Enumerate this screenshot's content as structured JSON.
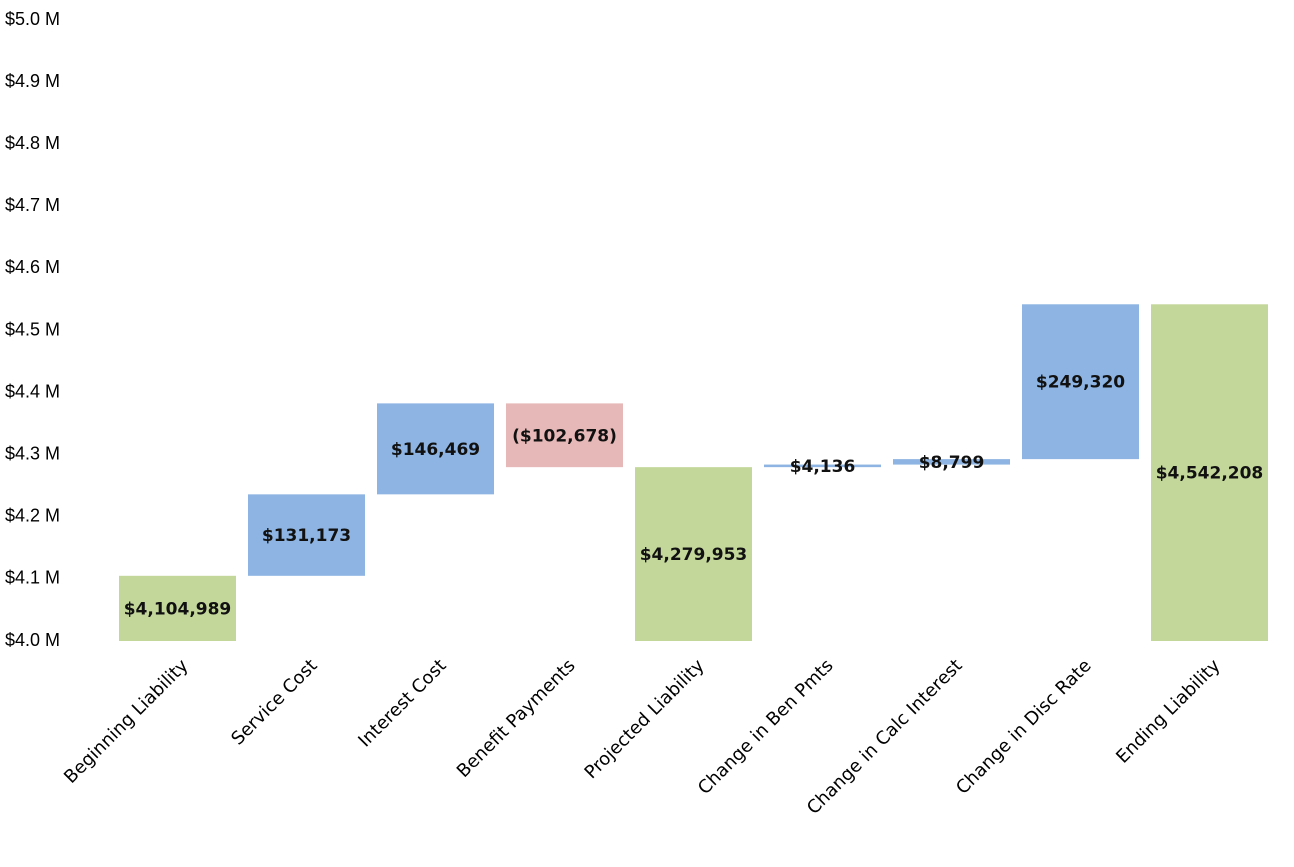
{
  "chart_data": {
    "type": "waterfall",
    "categories": [
      "Beginning Liability",
      "Service Cost",
      "Interest Cost",
      "Benefit Payments",
      "Projected Liability",
      "Change in Ben Pmts",
      "Change in Calc Interest",
      "Change in Disc Rate",
      "Ending Liability"
    ],
    "values": [
      4104989,
      131173,
      146469,
      -102678,
      4279953,
      4136,
      8799,
      249320,
      4542208
    ],
    "value_labels": [
      "$4,104,989",
      "$131,173",
      "$146,469",
      "($102,678)",
      "$4,279,953",
      "$4,136",
      "$8,799",
      "$249,320",
      "$4,542,208"
    ],
    "totals": [
      true,
      false,
      false,
      false,
      true,
      false,
      false,
      false,
      true
    ],
    "colors": {
      "total": "#c4d79b",
      "increase": "#8db4e2",
      "decrease": "#e6b8b7"
    },
    "ylim": [
      4000000,
      5000000
    ],
    "yticks": [
      {
        "value": 4000000,
        "label": "$4.0 M"
      },
      {
        "value": 4100000,
        "label": "$4.1 M"
      },
      {
        "value": 4200000,
        "label": "$4.2 M"
      },
      {
        "value": 4300000,
        "label": "$4.3 M"
      },
      {
        "value": 4400000,
        "label": "$4.4 M"
      },
      {
        "value": 4500000,
        "label": "$4.5 M"
      },
      {
        "value": 4600000,
        "label": "$4.6 M"
      },
      {
        "value": 4700000,
        "label": "$4.7 M"
      },
      {
        "value": 4800000,
        "label": "$4.8 M"
      },
      {
        "value": 4900000,
        "label": "$4.9 M"
      },
      {
        "value": 5000000,
        "label": "$5.0 M"
      }
    ],
    "grid": false
  }
}
